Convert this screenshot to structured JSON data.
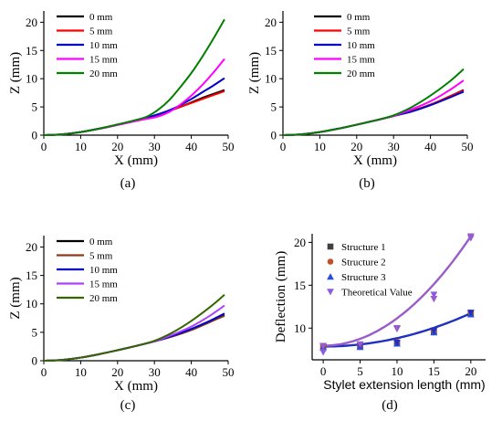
{
  "chart_data": [
    {
      "type": "line",
      "caption": "(a)",
      "xlabel": "X (mm)",
      "ylabel": "Z (mm)",
      "xlim": [
        0,
        50
      ],
      "ylim": [
        0,
        22
      ],
      "xticks": [
        "0",
        "10",
        "20",
        "30",
        "40",
        "50"
      ],
      "yticks": [
        "0",
        "5",
        "10",
        "15",
        "20"
      ],
      "legend_position": "top-left",
      "x": [
        0,
        5,
        10,
        15,
        20,
        25,
        28,
        31,
        34,
        37,
        40,
        43,
        46,
        49
      ],
      "series": [
        {
          "name": "0 mm",
          "color": "#000000",
          "values": [
            0,
            0.15,
            0.55,
            1.15,
            1.85,
            2.6,
            3.1,
            3.6,
            4.3,
            5.0,
            5.8,
            6.6,
            7.3,
            8.0
          ]
        },
        {
          "name": "5 mm",
          "color": "#ff0000",
          "values": [
            0,
            0.15,
            0.55,
            1.15,
            1.85,
            2.6,
            3.1,
            3.65,
            4.3,
            5.0,
            5.7,
            6.4,
            7.1,
            7.8
          ]
        },
        {
          "name": "10 mm",
          "color": "#0000cc",
          "values": [
            0,
            0.15,
            0.55,
            1.15,
            1.85,
            2.6,
            3.1,
            3.7,
            4.4,
            5.3,
            6.4,
            7.6,
            8.8,
            10.1
          ]
        },
        {
          "name": "15 mm",
          "color": "#ff00ff",
          "values": [
            0,
            0.15,
            0.55,
            1.1,
            1.8,
            2.5,
            2.9,
            3.3,
            4.1,
            5.4,
            7.0,
            8.9,
            11.1,
            13.5
          ]
        },
        {
          "name": "20 mm",
          "color": "#008000",
          "values": [
            0,
            0.15,
            0.55,
            1.15,
            1.9,
            2.7,
            3.3,
            4.5,
            6.2,
            8.5,
            11.0,
            13.9,
            17.1,
            20.5
          ]
        }
      ]
    },
    {
      "type": "line",
      "caption": "(b)",
      "xlabel": "X (mm)",
      "ylabel": "Z (mm)",
      "xlim": [
        0,
        50
      ],
      "ylim": [
        0,
        22
      ],
      "xticks": [
        "0",
        "10",
        "20",
        "30",
        "40",
        "50"
      ],
      "yticks": [
        "0",
        "5",
        "10",
        "15",
        "20"
      ],
      "legend_position": "top-right",
      "x": [
        0,
        5,
        10,
        15,
        20,
        25,
        30,
        35,
        40,
        45,
        49
      ],
      "series": [
        {
          "name": "0 mm",
          "color": "#000000",
          "values": [
            0,
            0.15,
            0.55,
            1.15,
            1.85,
            2.6,
            3.4,
            4.3,
            5.4,
            6.8,
            8.0
          ]
        },
        {
          "name": "5 mm",
          "color": "#ff0000",
          "values": [
            0,
            0.15,
            0.55,
            1.15,
            1.85,
            2.6,
            3.4,
            4.3,
            5.4,
            6.8,
            7.9
          ]
        },
        {
          "name": "10 mm",
          "color": "#0000cc",
          "values": [
            0,
            0.15,
            0.55,
            1.15,
            1.85,
            2.6,
            3.4,
            4.2,
            5.3,
            6.6,
            7.7
          ]
        },
        {
          "name": "15 mm",
          "color": "#ff00ff",
          "values": [
            0,
            0.15,
            0.55,
            1.15,
            1.85,
            2.6,
            3.4,
            4.6,
            6.0,
            7.9,
            9.7
          ]
        },
        {
          "name": "20 mm",
          "color": "#008000",
          "values": [
            0,
            0.15,
            0.55,
            1.15,
            1.85,
            2.6,
            3.5,
            5.0,
            7.0,
            9.4,
            11.7
          ]
        }
      ]
    },
    {
      "type": "line",
      "caption": "(c)",
      "xlabel": "X (mm)",
      "ylabel": "Z (mm)",
      "xlim": [
        0,
        50
      ],
      "ylim": [
        0,
        22
      ],
      "xticks": [
        "0",
        "10",
        "20",
        "30",
        "40",
        "50"
      ],
      "yticks": [
        "0",
        "5",
        "10",
        "15",
        "20"
      ],
      "legend_position": "top-right",
      "x": [
        0,
        5,
        10,
        15,
        20,
        25,
        30,
        35,
        40,
        45,
        49
      ],
      "series": [
        {
          "name": "0 mm",
          "color": "#000000",
          "values": [
            0,
            0.15,
            0.55,
            1.15,
            1.85,
            2.6,
            3.4,
            4.3,
            5.4,
            6.8,
            8.0
          ]
        },
        {
          "name": "5 mm",
          "color": "#8b3a1a",
          "values": [
            0,
            0.15,
            0.55,
            1.15,
            1.85,
            2.6,
            3.4,
            4.3,
            5.4,
            6.8,
            7.9
          ]
        },
        {
          "name": "10 mm",
          "color": "#0000cc",
          "values": [
            0,
            0.15,
            0.55,
            1.15,
            1.85,
            2.6,
            3.4,
            4.4,
            5.6,
            7.0,
            8.3
          ]
        },
        {
          "name": "15 mm",
          "color": "#b040ff",
          "values": [
            0,
            0.15,
            0.55,
            1.15,
            1.85,
            2.6,
            3.4,
            4.6,
            6.0,
            7.9,
            9.7
          ]
        },
        {
          "name": "20 mm",
          "color": "#336600",
          "values": [
            0,
            0.15,
            0.55,
            1.15,
            1.85,
            2.6,
            3.5,
            5.0,
            7.0,
            9.4,
            11.6
          ]
        }
      ]
    },
    {
      "type": "scatter",
      "caption": "(d)",
      "xlabel": "Stylet extension length (mm)",
      "ylabel": "Deflection (mm)",
      "xlim": [
        -1.5,
        22
      ],
      "ylim": [
        6.3,
        21
      ],
      "xticks": [
        "0",
        "5",
        "10",
        "15",
        "20"
      ],
      "yticks": [
        "10",
        "15",
        "20"
      ],
      "legend_position": "top-left",
      "x": [
        0,
        5,
        10,
        15,
        20
      ],
      "series": [
        {
          "name": "Structure 1",
          "color": "#404040",
          "marker": "square",
          "values": [
            7.8,
            7.9,
            8.3,
            9.6,
            11.7
          ]
        },
        {
          "name": "Structure 2",
          "color": "#c0502a",
          "marker": "circle",
          "values": [
            7.9,
            8.0,
            8.4,
            9.7,
            11.8
          ]
        },
        {
          "name": "Structure 3",
          "color": "#2a4dd8",
          "marker": "triangle-up",
          "values": [
            7.7,
            7.8,
            8.2,
            9.5,
            11.6
          ]
        },
        {
          "name": "Theoretical Value",
          "color": "#8a5ce0",
          "marker": "triangle-down",
          "values": [
            7.2,
            7.8,
            9.9,
            13.9,
            20.5
          ]
        },
        {
          "name": "",
          "color": "#2030c0",
          "marker": "triangle-down",
          "values": [
            7.9,
            7.9,
            8.3,
            9.7,
            11.8
          ]
        },
        {
          "name": "",
          "color": "#9a5cc8",
          "marker": "triangle-down",
          "values": [
            7.9,
            8.1,
            10.0,
            13.4,
            20.7
          ]
        }
      ],
      "fit_curves": [
        {
          "color": "#2030c0",
          "coef": [
            7.85,
            0.0,
            0.0097
          ]
        },
        {
          "color": "#9a5cc8",
          "coef": [
            7.95,
            0.0,
            0.0319
          ]
        }
      ]
    }
  ]
}
